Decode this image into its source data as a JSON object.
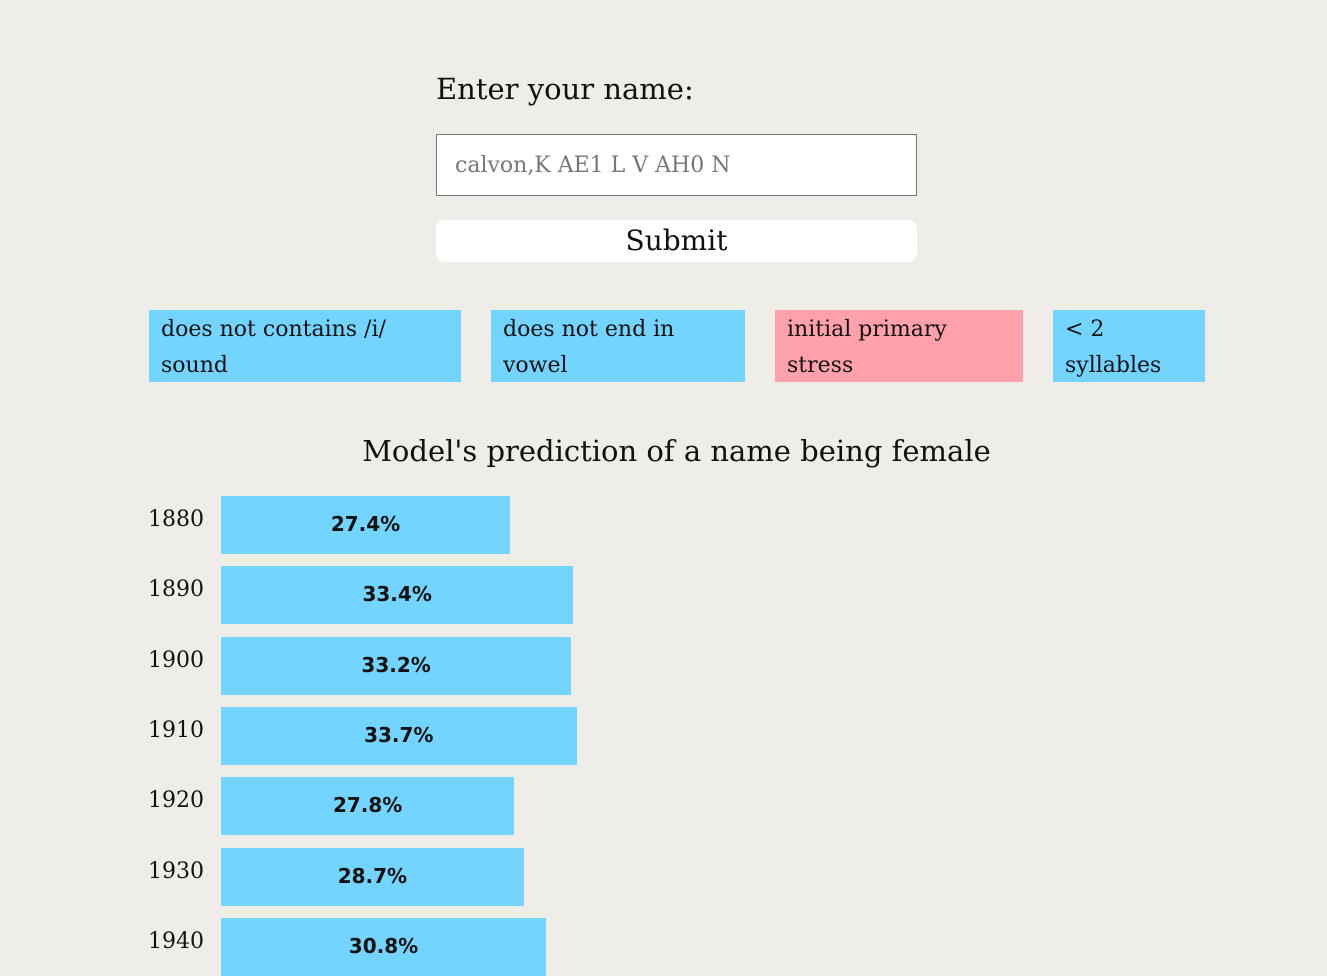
{
  "form": {
    "prompt": "Enter your name:",
    "input_placeholder": "calvon,K AE1 L V AH0 N",
    "submit_label": "Submit"
  },
  "features": [
    {
      "label": "does not contains /i/ sound",
      "color": "#72d4ff"
    },
    {
      "label": "does not end in vowel",
      "color": "#72d4ff"
    },
    {
      "label": "initial primary stress",
      "color": "#ffa1ab"
    },
    {
      "label": "< 2 syllables",
      "color": "#72d4ff"
    }
  ],
  "chart_data": {
    "type": "bar",
    "orientation": "horizontal",
    "title": "Model's prediction of a name being female",
    "categories": [
      "1880",
      "1890",
      "1900",
      "1910",
      "1920",
      "1930",
      "1940"
    ],
    "values": [
      27.4,
      33.4,
      33.2,
      33.7,
      27.8,
      28.7,
      30.8
    ],
    "value_labels": [
      "27.4%",
      "33.4%",
      "33.2%",
      "33.7%",
      "27.8%",
      "28.7%",
      "30.8%"
    ],
    "unit": "%",
    "bar_color": "#72d4ff"
  }
}
